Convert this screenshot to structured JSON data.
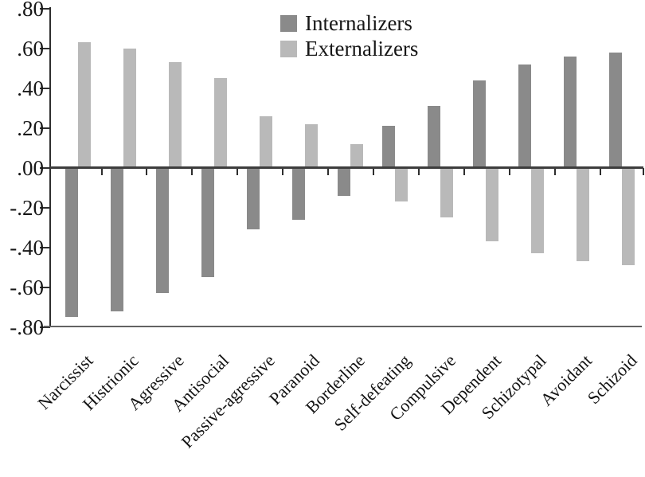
{
  "chart_data": {
    "type": "bar",
    "title": "",
    "xlabel": "",
    "ylabel": "",
    "grid": false,
    "legend_position": "top-center",
    "ylim": [
      -0.8,
      0.8
    ],
    "categories": [
      "Narcissist",
      "Histrionic",
      "Agressive",
      "Antisocial",
      "Passive-agressive",
      "Paranoid",
      "Borderline",
      "Self-defeating",
      "Compulsive",
      "Dependent",
      "Schizotypal",
      "Avoidant",
      "Schizoid"
    ],
    "series": [
      {
        "name": "Internalizers",
        "color": "#8a8a8a",
        "values": [
          -0.75,
          -0.72,
          -0.63,
          -0.55,
          -0.31,
          -0.26,
          -0.14,
          0.21,
          0.31,
          0.44,
          0.52,
          0.56,
          0.58
        ]
      },
      {
        "name": "Externalizers",
        "color": "#b9b9b9",
        "values": [
          0.63,
          0.6,
          0.53,
          0.45,
          0.26,
          0.22,
          0.12,
          -0.17,
          -0.25,
          -0.37,
          -0.43,
          -0.47,
          -0.49
        ]
      }
    ],
    "y_ticks": [
      {
        "label": ".80",
        "value": 0.8
      },
      {
        "label": ".60",
        "value": 0.6
      },
      {
        "label": ".40",
        "value": 0.4
      },
      {
        "label": ".20",
        "value": 0.2
      },
      {
        "label": ".00",
        "value": 0.0
      },
      {
        "label": "-.20",
        "value": -0.2
      },
      {
        "label": "-.40",
        "value": -0.4
      },
      {
        "label": "-.60",
        "value": -0.6
      },
      {
        "label": "-.80",
        "value": -0.8
      }
    ]
  },
  "colors": {
    "axis": "#2e2e2e",
    "zero_line": "#3d3d3d",
    "baseline": "#636363",
    "text": "#161616",
    "background": "#ffffff"
  }
}
